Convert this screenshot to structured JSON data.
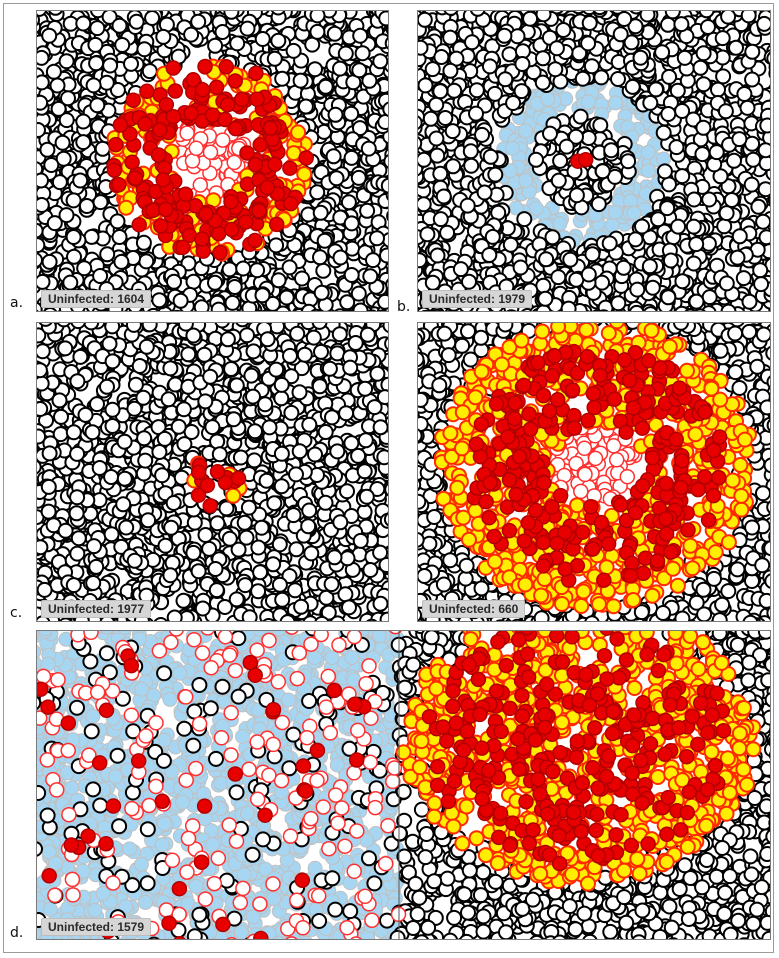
{
  "colors": {
    "uninfected_fill": "#ffffff",
    "uninfected_stroke": "#000000",
    "infected_fill": "#ffee00",
    "infected_stroke": "#ff2a00",
    "producing_fill": "#e80000",
    "producing_stroke": "#b00000",
    "dead_fill": "#ffffff",
    "dead_stroke": "#ff3030",
    "cleared_fill": "#a6d6f2",
    "cleared_stroke": "#c0c0c0",
    "badge_background": "#d6d6d6"
  },
  "panels": [
    {
      "id": "a",
      "letter": "a.",
      "badge": "Uninfected: 1604",
      "scenario": "spreading-ring"
    },
    {
      "id": "b",
      "letter": "b.",
      "badge": "Uninfected: 1979",
      "scenario": "contained-ring"
    },
    {
      "id": "c",
      "letter": "c.",
      "badge": "Uninfected: 1977",
      "scenario": "small-cluster"
    },
    {
      "id": "c2",
      "letter": "",
      "badge": "Uninfected: 660",
      "scenario": "large-spread"
    },
    {
      "id": "d",
      "letter": "d.",
      "badge": "Uninfected: 1579",
      "scenario": "cleared-split"
    }
  ]
}
